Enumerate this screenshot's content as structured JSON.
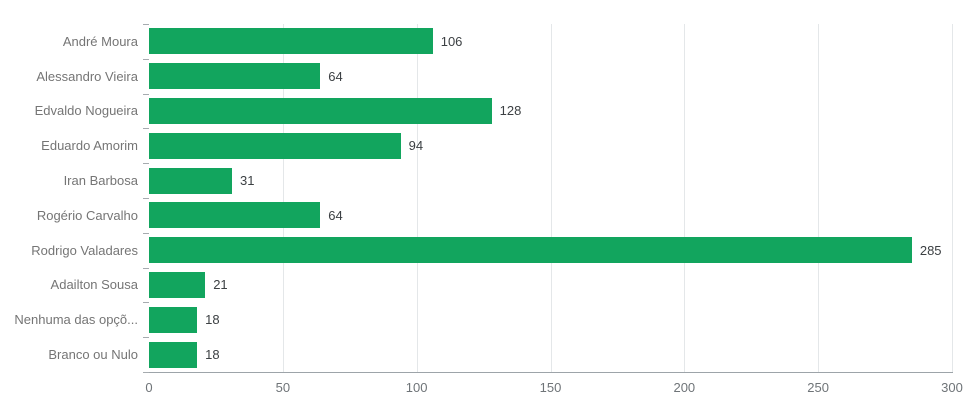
{
  "chart_data": {
    "type": "bar",
    "orientation": "horizontal",
    "title": "",
    "xlabel": "",
    "ylabel": "",
    "categories": [
      "André Moura",
      "Alessandro Vieira",
      "Edvaldo Nogueira",
      "Eduardo Amorim",
      "Iran Barbosa",
      "Rogério Carvalho",
      "Rodrigo Valadares",
      "Adailton Sousa",
      "Nenhuma das opçõ...",
      "Branco ou Nulo"
    ],
    "values": [
      106,
      64,
      128,
      94,
      31,
      64,
      285,
      21,
      18,
      18
    ],
    "value_labels": [
      "106",
      "64",
      "128",
      "94",
      "31",
      "64",
      "285",
      "21",
      "18",
      "18"
    ],
    "xlim": [
      0,
      300
    ],
    "x_ticks": [
      0,
      50,
      100,
      150,
      200,
      250,
      300
    ],
    "x_tick_labels": [
      "0",
      "50",
      "100",
      "150",
      "200",
      "250",
      "300"
    ],
    "grid": "vertical",
    "legend": "none",
    "colors": {
      "bar": "#12a55e",
      "gridline": "#e4e7e9",
      "axis_line": "#9da4a9",
      "tick_mark": "#a6abaf",
      "category_label": "#757575",
      "tick_label": "#6f7478",
      "value_label": "#3c4043",
      "background": "#ffffff"
    }
  }
}
